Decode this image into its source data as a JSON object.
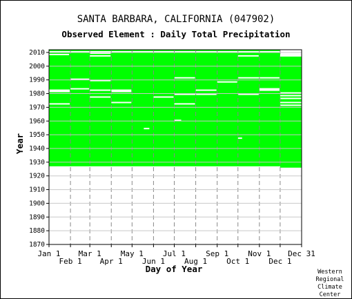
{
  "header": {
    "title": "SANTA BARBARA, CALIFORNIA   (047902)",
    "subtitle": "Observed Element : Daily Total Precipitation"
  },
  "credit": {
    "line1": "Western",
    "line2": "Regional",
    "line3": "Climate",
    "line4": "Center"
  },
  "colors": {
    "data": "#00ff00",
    "gap": "#ffffff",
    "grid": "#888888",
    "axis": "#000000"
  },
  "chart_data": {
    "type": "heatmap",
    "title": "Observed Element : Daily Total Precipitation",
    "xlabel": "Day of Year",
    "ylabel": "Year",
    "xlim": [
      1,
      366
    ],
    "ylim": [
      1870,
      2012
    ],
    "x_ticks_upper": [
      {
        "label": "Jan 1",
        "day": 1
      },
      {
        "label": "Mar 1",
        "day": 60
      },
      {
        "label": "May 1",
        "day": 121
      },
      {
        "label": "Jul 1",
        "day": 182
      },
      {
        "label": "Sep 1",
        "day": 244
      },
      {
        "label": "Nov 1",
        "day": 305
      },
      {
        "label": "Dec 31",
        "day": 366
      }
    ],
    "x_ticks_lower": [
      {
        "label": "Feb 1",
        "day": 32
      },
      {
        "label": "Apr 1",
        "day": 91
      },
      {
        "label": "Jun 1",
        "day": 152
      },
      {
        "label": "Aug 1",
        "day": 213
      },
      {
        "label": "Oct 1",
        "day": 274
      },
      {
        "label": "Dec 1",
        "day": 335
      }
    ],
    "y_ticks": [
      {
        "label": "1870",
        "value": 1870
      },
      {
        "label": "1880",
        "value": 1880
      },
      {
        "label": "1890",
        "value": 1890
      },
      {
        "label": "1900",
        "value": 1900
      },
      {
        "label": "1910",
        "value": 1910
      },
      {
        "label": "1920",
        "value": 1920
      },
      {
        "label": "1930",
        "value": 1930
      },
      {
        "label": "1940",
        "value": 1940
      },
      {
        "label": "1950",
        "value": 1950
      },
      {
        "label": "1960",
        "value": 1960
      },
      {
        "label": "1970",
        "value": 1970
      },
      {
        "label": "1980",
        "value": 1980
      },
      {
        "label": "1990",
        "value": 1990
      },
      {
        "label": "2000",
        "value": 2000
      },
      {
        "label": "2010",
        "value": 2010
      }
    ],
    "data_coverage": [
      {
        "day_start": 1,
        "day_end": 335,
        "year_start": 1927,
        "year_end": 2011
      },
      {
        "day_start": 335,
        "day_end": 366,
        "year_start": 1926,
        "year_end": 2007
      }
    ],
    "missing_records": [
      {
        "day_start": 1,
        "day_end": 366,
        "year": 2010
      },
      {
        "day_start": 335,
        "day_end": 366,
        "year": 2007
      },
      {
        "day_start": 1,
        "day_end": 30,
        "year": 2008
      },
      {
        "day_start": 60,
        "day_end": 90,
        "year": 2007
      },
      {
        "day_start": 60,
        "day_end": 90,
        "year": 2009
      },
      {
        "day_start": 274,
        "day_end": 304,
        "year": 2007
      },
      {
        "day_start": 32,
        "day_end": 59,
        "year": 1990
      },
      {
        "day_start": 60,
        "day_end": 90,
        "year": 1989
      },
      {
        "day_start": 182,
        "day_end": 212,
        "year": 1991
      },
      {
        "day_start": 244,
        "day_end": 273,
        "year": 1988
      },
      {
        "day_start": 274,
        "day_end": 334,
        "year": 1991
      },
      {
        "day_start": 1,
        "day_end": 31,
        "year": 1982
      },
      {
        "day_start": 1,
        "day_end": 31,
        "year": 1981
      },
      {
        "day_start": 32,
        "day_end": 59,
        "year": 1983
      },
      {
        "day_start": 60,
        "day_end": 90,
        "year": 1982
      },
      {
        "day_start": 91,
        "day_end": 120,
        "year": 1982
      },
      {
        "day_start": 91,
        "day_end": 120,
        "year": 1981
      },
      {
        "day_start": 213,
        "day_end": 243,
        "year": 1982
      },
      {
        "day_start": 182,
        "day_end": 243,
        "year": 1979
      },
      {
        "day_start": 305,
        "day_end": 334,
        "year": 1983
      },
      {
        "day_start": 305,
        "day_end": 334,
        "year": 1982
      },
      {
        "day_start": 335,
        "day_end": 366,
        "year": 1980
      },
      {
        "day_start": 335,
        "day_end": 366,
        "year": 1978
      },
      {
        "day_start": 1,
        "day_end": 31,
        "year": 1972
      },
      {
        "day_start": 60,
        "day_end": 90,
        "year": 1977
      },
      {
        "day_start": 91,
        "day_end": 120,
        "year": 1973
      },
      {
        "day_start": 152,
        "day_end": 181,
        "year": 1977
      },
      {
        "day_start": 182,
        "day_end": 212,
        "year": 1972
      },
      {
        "day_start": 274,
        "day_end": 304,
        "year": 1979
      },
      {
        "day_start": 335,
        "day_end": 366,
        "year": 1976
      },
      {
        "day_start": 335,
        "day_end": 366,
        "year": 1973
      },
      {
        "day_start": 335,
        "day_end": 366,
        "year": 1971
      },
      {
        "day_start": 182,
        "day_end": 192,
        "year": 1960
      },
      {
        "day_start": 274,
        "day_end": 280,
        "year": 1947
      },
      {
        "day_start": 138,
        "day_end": 146,
        "year": 1954
      }
    ]
  }
}
